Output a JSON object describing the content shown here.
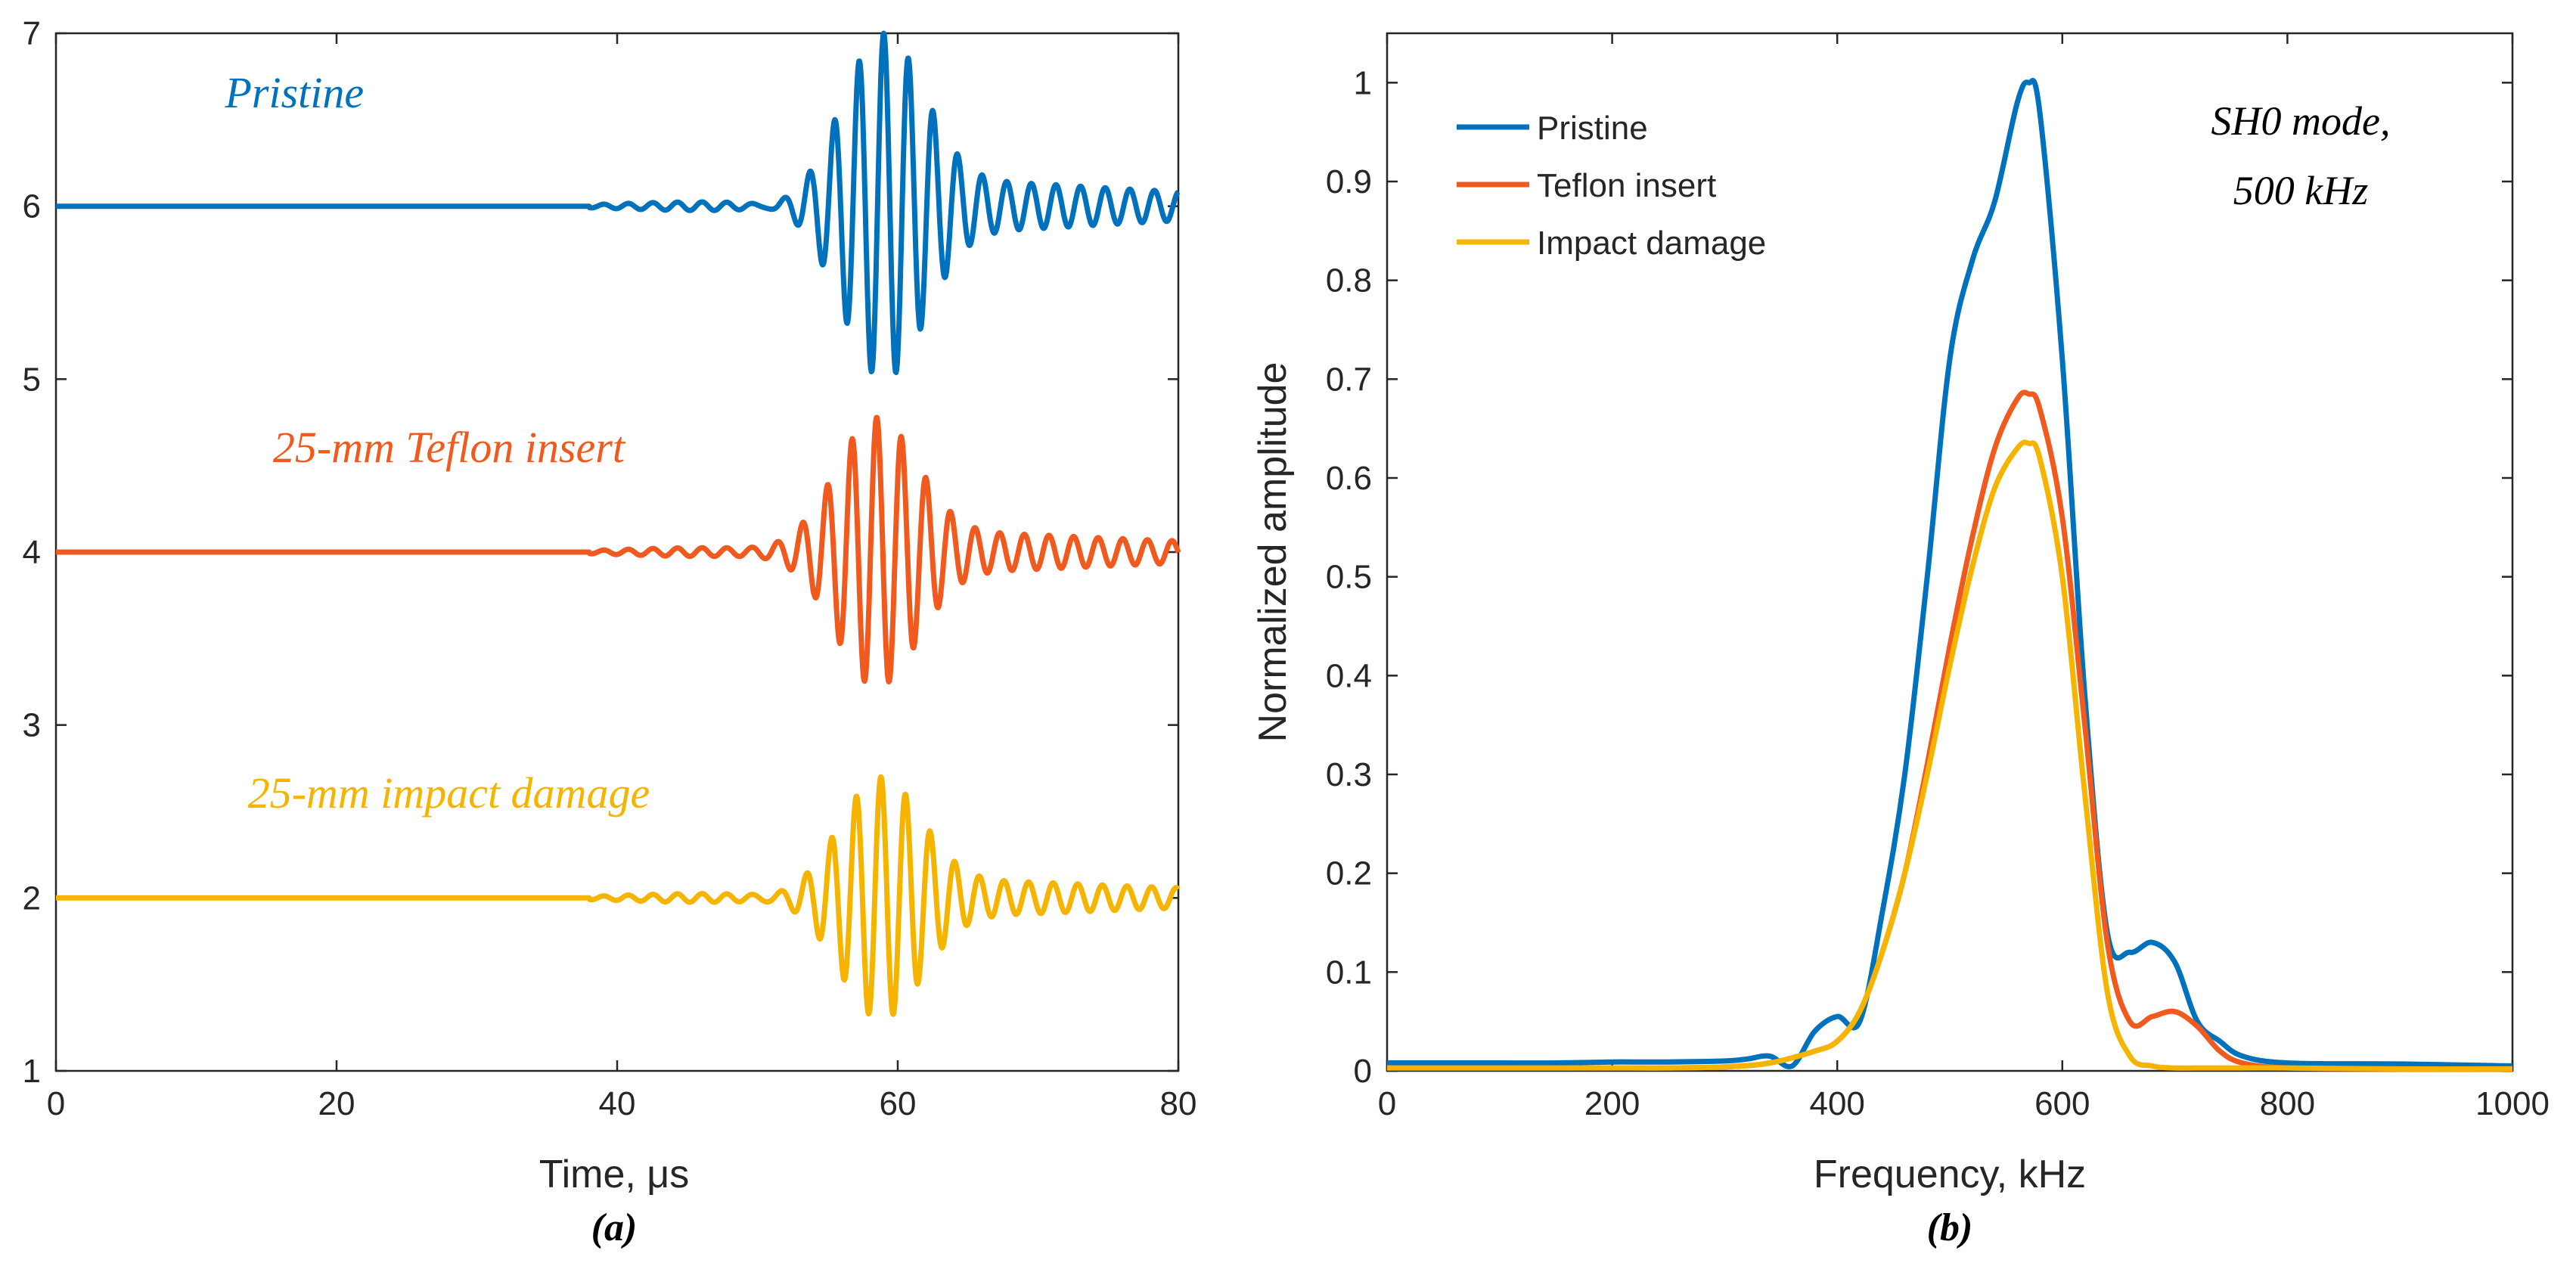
{
  "colors": {
    "pristine": "#0072BD",
    "teflon": "#F05A1E",
    "impact": "#F5B400",
    "axis": "#262626"
  },
  "chart_data": [
    {
      "type": "line",
      "panel_label": "(a)",
      "xlabel": "Time, μs",
      "ylabel": "",
      "xlim": [
        0,
        80
      ],
      "ylim": [
        1,
        7
      ],
      "xticks": [
        "0",
        "20",
        "40",
        "60",
        "80"
      ],
      "yticks": [
        "1",
        "2",
        "3",
        "4",
        "5",
        "6",
        "7"
      ],
      "series": [
        {
          "name": "Pristine",
          "label": "Pristine",
          "offset": 6,
          "peak_amplitude": 1.0,
          "center_us": 59.0,
          "color_key": "pristine"
        },
        {
          "name": "25-mm Teflon insert",
          "label": "25-mm Teflon insert",
          "offset": 4,
          "peak_amplitude": 0.78,
          "center_us": 58.5,
          "color_key": "teflon"
        },
        {
          "name": "25-mm impact damage",
          "label": "25-mm impact damage",
          "offset": 2,
          "peak_amplitude": 0.7,
          "center_us": 58.8,
          "color_key": "impact"
        }
      ],
      "signal_frequency_khz": 570
    },
    {
      "type": "line",
      "panel_label": "(b)",
      "xlabel": "Frequency, kHz",
      "ylabel": "Normalized amplitude",
      "xlim": [
        0,
        1000
      ],
      "ylim": [
        0,
        1.05
      ],
      "xticks": [
        "0",
        "200",
        "400",
        "600",
        "800",
        "1000"
      ],
      "yticks": [
        "0",
        "0.1",
        "0.2",
        "0.3",
        "0.4",
        "0.5",
        "0.6",
        "0.7",
        "0.8",
        "0.9",
        "1"
      ],
      "annotation": [
        "SH0 mode,",
        "500 kHz"
      ],
      "legend": [
        "Pristine",
        "Teflon insert",
        "Impact damage"
      ],
      "series": [
        {
          "name": "Pristine",
          "color_key": "pristine",
          "x": [
            0,
            50,
            100,
            150,
            200,
            250,
            300,
            320,
            340,
            360,
            380,
            400,
            420,
            440,
            460,
            480,
            500,
            520,
            540,
            560,
            570,
            580,
            600,
            620,
            640,
            660,
            680,
            700,
            720,
            740,
            760,
            800,
            900,
            1000
          ],
          "y": [
            0.008,
            0.008,
            0.008,
            0.008,
            0.009,
            0.009,
            0.01,
            0.012,
            0.015,
            0.005,
            0.04,
            0.055,
            0.05,
            0.16,
            0.3,
            0.5,
            0.72,
            0.82,
            0.88,
            0.98,
            1.0,
            0.97,
            0.72,
            0.38,
            0.14,
            0.12,
            0.13,
            0.11,
            0.05,
            0.03,
            0.015,
            0.008,
            0.007,
            0.005
          ]
        },
        {
          "name": "Teflon insert",
          "color_key": "teflon",
          "x": [
            0,
            100,
            200,
            250,
            300,
            340,
            380,
            400,
            420,
            440,
            460,
            480,
            500,
            520,
            540,
            560,
            570,
            580,
            600,
            620,
            640,
            660,
            680,
            700,
            720,
            740,
            760,
            800,
            900,
            1000
          ],
          "y": [
            0.003,
            0.003,
            0.003,
            0.003,
            0.004,
            0.008,
            0.02,
            0.03,
            0.06,
            0.12,
            0.2,
            0.31,
            0.43,
            0.54,
            0.63,
            0.68,
            0.685,
            0.67,
            0.56,
            0.35,
            0.13,
            0.05,
            0.055,
            0.06,
            0.045,
            0.02,
            0.008,
            0.003,
            0.002,
            0.002
          ]
        },
        {
          "name": "Impact damage",
          "color_key": "impact",
          "x": [
            0,
            100,
            200,
            250,
            300,
            340,
            380,
            400,
            420,
            440,
            460,
            480,
            500,
            520,
            540,
            560,
            570,
            580,
            600,
            620,
            640,
            660,
            680,
            700,
            720,
            760,
            800,
            900,
            1000
          ],
          "y": [
            0.003,
            0.003,
            0.003,
            0.003,
            0.004,
            0.008,
            0.02,
            0.03,
            0.06,
            0.12,
            0.2,
            0.3,
            0.41,
            0.51,
            0.59,
            0.63,
            0.635,
            0.62,
            0.5,
            0.28,
            0.08,
            0.015,
            0.005,
            0.003,
            0.003,
            0.003,
            0.003,
            0.002,
            0.002
          ]
        }
      ]
    }
  ]
}
